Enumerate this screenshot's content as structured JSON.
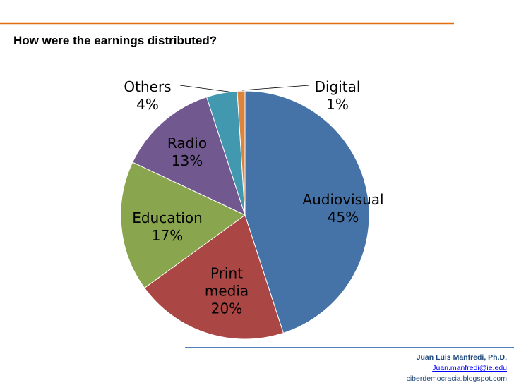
{
  "chart_data": {
    "type": "pie",
    "title": "How were the earnings distributed?",
    "categories": [
      "Audiovisual",
      "Print media",
      "Education",
      "Radio",
      "Others",
      "Digital"
    ],
    "values": [
      45,
      20,
      17,
      13,
      4,
      1
    ],
    "value_labels": [
      "45%",
      "20%",
      "17%",
      "13%",
      "4%",
      "1%"
    ],
    "colors": [
      "#4572a7",
      "#aa4643",
      "#89a54e",
      "#71588f",
      "#4198af",
      "#db843d"
    ]
  },
  "footer": {
    "author": "Juan Luis Manfredi, Ph.D.",
    "email": "Juan.manfredi@ie.edu",
    "website": "ciberdemocracia.blogspot.com"
  }
}
